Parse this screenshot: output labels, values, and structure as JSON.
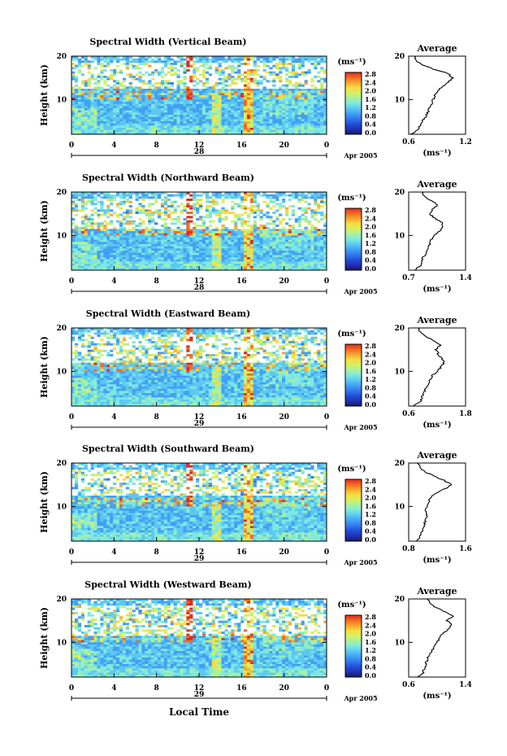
{
  "figure": {
    "date_label": "Apr 2005",
    "xlabel_common": "Local Time",
    "cbar_unit": "(ms⁻¹)",
    "avg_title": "Average",
    "avg_unit": "(ms⁻¹)",
    "colormap": [
      "#1a1a66",
      "#2030b0",
      "#2050d8",
      "#3278ee",
      "#42a0f4",
      "#5cc8f2",
      "#7ee8e0",
      "#a6f2a0",
      "#d8f060",
      "#f6dc40",
      "#f6a830",
      "#f06a24",
      "#e02a1c"
    ]
  },
  "chart_data": [
    {
      "type": "heatmap",
      "title": "Spectral Width (Vertical Beam)",
      "ylabel": "Height (km)",
      "day_label": "28",
      "x_ticks": [
        "0",
        "4",
        "8",
        "12",
        "16",
        "20",
        "0"
      ],
      "y_ticks": [
        "20",
        "10"
      ],
      "xlim": [
        0,
        24
      ],
      "ylim": [
        2,
        20
      ],
      "colorbar_ticks": [
        "2.8",
        "2.4",
        "2.0",
        "1.6",
        "1.2",
        "0.8",
        "0.4",
        "0.0"
      ],
      "clim": [
        0,
        2.8
      ],
      "average": {
        "xlim": [
          0.6,
          1.2
        ],
        "x_ticks": [
          "0.6",
          "1.2"
        ],
        "y_ticks": [
          "20",
          "10"
        ],
        "heights": [
          2,
          3,
          4,
          5,
          6,
          7,
          8,
          9,
          10,
          11,
          12,
          13,
          14,
          15,
          16,
          17,
          18,
          19,
          20
        ],
        "values": [
          0.62,
          0.7,
          0.72,
          0.74,
          0.78,
          0.8,
          0.82,
          0.84,
          0.86,
          0.88,
          0.9,
          0.96,
          1.02,
          1.06,
          1.02,
          0.86,
          0.74,
          0.68,
          0.66
        ]
      }
    },
    {
      "type": "heatmap",
      "title": "Spectral Width (Northward Beam)",
      "ylabel": "Height (km)",
      "day_label": "28",
      "x_ticks": [
        "0",
        "4",
        "8",
        "12",
        "16",
        "20",
        "0"
      ],
      "y_ticks": [
        "20",
        "10"
      ],
      "xlim": [
        0,
        24
      ],
      "ylim": [
        2,
        20
      ],
      "colorbar_ticks": [
        "2.8",
        "2.4",
        "2.0",
        "1.6",
        "1.2",
        "0.8",
        "0.4",
        "0.0"
      ],
      "clim": [
        0,
        2.8
      ],
      "average": {
        "xlim": [
          0.7,
          1.4
        ],
        "x_ticks": [
          "0.7",
          "1.4"
        ],
        "y_ticks": [
          "20",
          "10"
        ],
        "heights": [
          2,
          3,
          4,
          5,
          6,
          7,
          8,
          9,
          10,
          11,
          12,
          13,
          14,
          15,
          16,
          17,
          18,
          19,
          20
        ],
        "values": [
          0.78,
          0.84,
          0.86,
          0.88,
          0.92,
          0.94,
          0.96,
          0.98,
          1.0,
          1.08,
          1.12,
          1.1,
          1.02,
          0.96,
          1.0,
          1.06,
          0.98,
          0.9,
          0.86
        ]
      }
    },
    {
      "type": "heatmap",
      "title": "Spectral Width (Eastward Beam)",
      "ylabel": "Height (km)",
      "day_label": "29",
      "x_ticks": [
        "0",
        "4",
        "8",
        "12",
        "16",
        "20",
        "0"
      ],
      "y_ticks": [
        "20",
        "10"
      ],
      "xlim": [
        0,
        24
      ],
      "ylim": [
        2,
        20
      ],
      "colorbar_ticks": [
        "2.8",
        "2.4",
        "2.0",
        "1.6",
        "1.2",
        "0.8",
        "0.4",
        "0.0"
      ],
      "clim": [
        0,
        2.8
      ],
      "average": {
        "xlim": [
          0.6,
          1.8
        ],
        "x_ticks": [
          "0.6",
          "1.8"
        ],
        "y_ticks": [
          "20",
          "10"
        ],
        "heights": [
          2,
          3,
          4,
          5,
          6,
          7,
          8,
          9,
          10,
          11,
          12,
          13,
          14,
          15,
          16,
          17,
          18,
          19,
          20
        ],
        "values": [
          0.7,
          0.84,
          0.88,
          0.92,
          0.96,
          1.0,
          1.04,
          1.1,
          1.2,
          1.28,
          1.34,
          1.3,
          1.22,
          1.18,
          1.26,
          1.14,
          0.96,
          0.86,
          0.8
        ]
      }
    },
    {
      "type": "heatmap",
      "title": "Spectral Width (Southward Beam)",
      "ylabel": "Height (km)",
      "day_label": "29",
      "x_ticks": [
        "0",
        "4",
        "8",
        "12",
        "16",
        "20",
        "0"
      ],
      "y_ticks": [
        "20",
        "10"
      ],
      "xlim": [
        0,
        24
      ],
      "ylim": [
        2,
        20
      ],
      "colorbar_ticks": [
        "2.8",
        "2.4",
        "2.0",
        "1.6",
        "1.2",
        "0.8",
        "0.4",
        "0.0"
      ],
      "clim": [
        0,
        2.8
      ],
      "average": {
        "xlim": [
          0.8,
          1.6
        ],
        "x_ticks": [
          "0.8",
          "1.6"
        ],
        "y_ticks": [
          "20",
          "10"
        ],
        "heights": [
          2,
          3,
          4,
          5,
          6,
          7,
          8,
          9,
          10,
          11,
          12,
          13,
          14,
          15,
          16,
          17,
          18,
          19,
          20
        ],
        "values": [
          0.92,
          0.96,
          0.98,
          1.0,
          1.02,
          1.04,
          1.06,
          1.04,
          1.06,
          1.08,
          1.1,
          1.18,
          1.3,
          1.4,
          1.3,
          1.16,
          1.02,
          0.96,
          0.92
        ]
      }
    },
    {
      "type": "heatmap",
      "title": "Spectral Width (Westward Beam)",
      "ylabel": "Height (km)",
      "day_label": "29",
      "x_ticks": [
        "0",
        "4",
        "8",
        "12",
        "16",
        "20",
        "0"
      ],
      "y_ticks": [
        "20",
        "10"
      ],
      "xlim": [
        0,
        24
      ],
      "ylim": [
        2,
        20
      ],
      "colorbar_ticks": [
        "2.8",
        "2.4",
        "2.0",
        "1.6",
        "1.2",
        "0.8",
        "0.4",
        "0.0"
      ],
      "clim": [
        0,
        2.8
      ],
      "average": {
        "xlim": [
          0.6,
          1.4
        ],
        "x_ticks": [
          "0.6",
          "1.4"
        ],
        "y_ticks": [
          "20",
          "10"
        ],
        "heights": [
          2,
          3,
          4,
          5,
          6,
          7,
          8,
          9,
          10,
          11,
          12,
          13,
          14,
          15,
          16,
          17,
          18,
          19,
          20
        ],
        "values": [
          0.72,
          0.8,
          0.82,
          0.84,
          0.86,
          0.88,
          0.92,
          0.96,
          1.0,
          1.04,
          1.08,
          1.16,
          1.2,
          1.14,
          1.22,
          1.12,
          0.98,
          0.9,
          0.86
        ]
      }
    }
  ]
}
